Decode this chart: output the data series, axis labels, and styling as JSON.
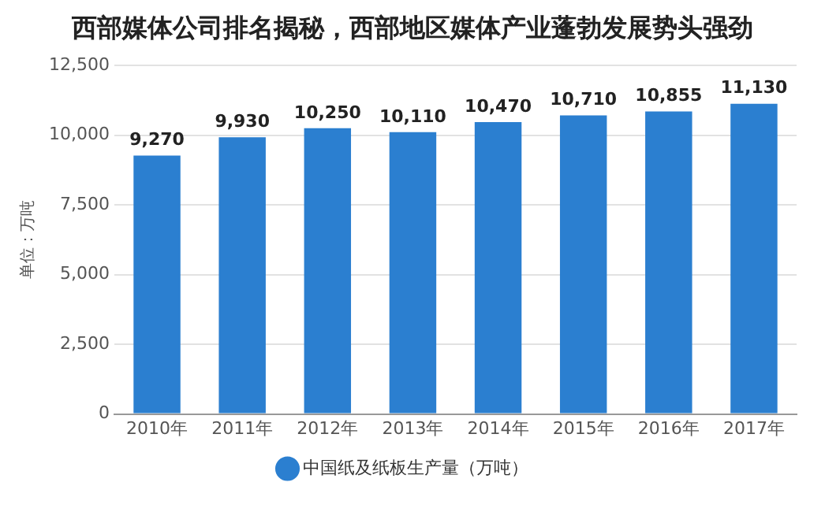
{
  "chart_data": {
    "type": "bar",
    "title": "西部媒体公司排名揭秘，西部地区媒体产业蓬勃发展势头强劲",
    "ylabel": "单位：万吨",
    "categories": [
      "2010年",
      "2011年",
      "2012年",
      "2013年",
      "2014年",
      "2015年",
      "2016年",
      "2017年"
    ],
    "series": [
      {
        "name": "中国纸及纸板生产量（万吨）",
        "color": "#2b7fd0",
        "values": [
          9270,
          9930,
          10250,
          10110,
          10470,
          10710,
          10855,
          11130
        ],
        "value_labels": [
          "9,270",
          "9,930",
          "10,250",
          "10,110",
          "10,470",
          "10,710",
          "10,855",
          "11,130"
        ]
      }
    ],
    "ylim": [
      0,
      12500
    ],
    "yticks": [
      0,
      {
        "value": 2500,
        "label": "2,500"
      },
      {
        "value": 5000,
        "label": "5,000"
      },
      {
        "value": 7500,
        "label": "7,500"
      },
      {
        "value": 10000,
        "label": "10,000"
      },
      {
        "value": 12500,
        "label": "12,500"
      }
    ],
    "grid": "y",
    "legend": "bottom"
  }
}
